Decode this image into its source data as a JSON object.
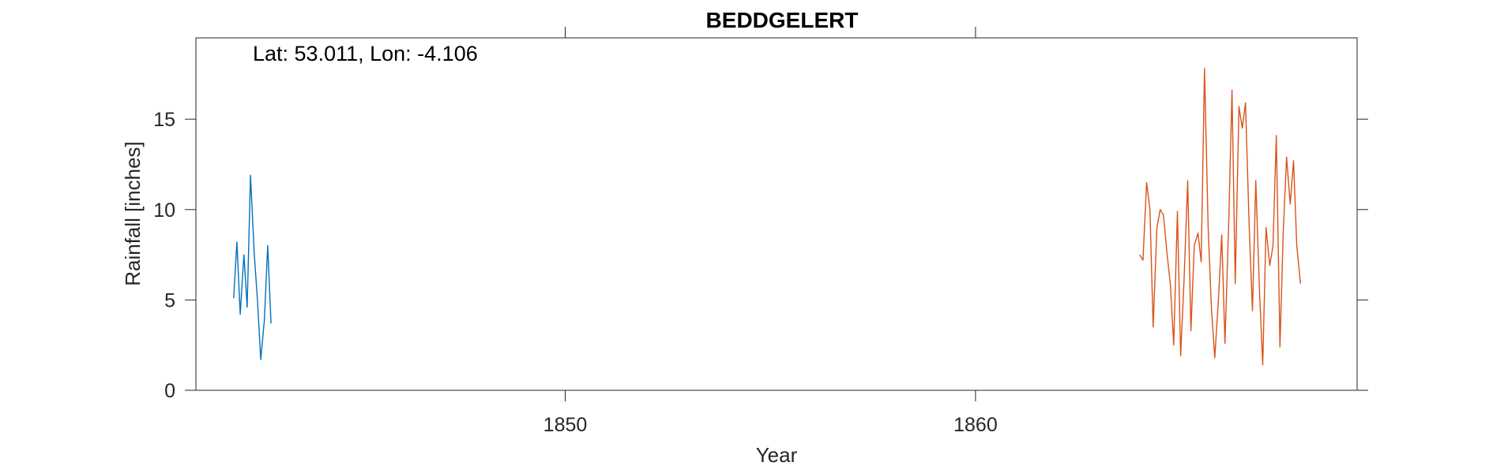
{
  "chart_data": {
    "type": "line",
    "title": "BEDDGELERT",
    "xlabel": "Year",
    "ylabel": "Rainfall [inches]",
    "annotation": "Lat: 53.011, Lon: -4.106",
    "xlim": [
      1841,
      1869.3
    ],
    "ylim": [
      0,
      19.5
    ],
    "xticks": [
      1850,
      1860
    ],
    "xtick_labels": [
      "1850",
      "1860"
    ],
    "yticks": [
      0,
      5,
      10,
      15
    ],
    "ytick_labels": [
      "0",
      "5",
      "10",
      "15"
    ],
    "grid": false,
    "box": true,
    "series": [
      {
        "color": "#0072BD",
        "x": [
          1841.92,
          1842.0,
          1842.08,
          1842.17,
          1842.25,
          1842.33,
          1842.42,
          1842.5,
          1842.58,
          1842.67,
          1842.75,
          1842.83
        ],
        "y": [
          5.1,
          8.2,
          4.2,
          7.5,
          4.6,
          11.9,
          7.6,
          5.0,
          1.7,
          3.9,
          8.0,
          3.7
        ]
      },
      {
        "color": "#D95319",
        "x": [
          1864.0,
          1864.08,
          1864.17,
          1864.25,
          1864.33,
          1864.42,
          1864.5,
          1864.58,
          1864.67,
          1864.75,
          1864.83,
          1864.92,
          1865.0,
          1865.08,
          1865.17,
          1865.25,
          1865.33,
          1865.42,
          1865.5,
          1865.58,
          1865.67,
          1865.75,
          1865.83,
          1865.92,
          1866.0,
          1866.08,
          1866.17,
          1866.25,
          1866.33,
          1866.42,
          1866.5,
          1866.58,
          1866.67,
          1866.75,
          1866.83,
          1866.92,
          1867.0,
          1867.08,
          1867.17,
          1867.25,
          1867.33,
          1867.42,
          1867.5,
          1867.58,
          1867.67,
          1867.75,
          1867.83,
          1867.92
        ],
        "y": [
          7.5,
          7.2,
          11.5,
          10.0,
          3.5,
          9.0,
          10.0,
          9.7,
          7.5,
          5.8,
          2.5,
          9.9,
          1.9,
          6.0,
          11.6,
          3.3,
          8.0,
          8.7,
          7.1,
          17.8,
          9.0,
          4.5,
          1.8,
          5.0,
          8.6,
          2.6,
          9.2,
          16.6,
          5.9,
          15.7,
          14.5,
          15.9,
          9.0,
          4.4,
          11.6,
          5.5,
          1.4,
          9.0,
          6.9,
          8.0,
          14.1,
          2.4,
          8.8,
          12.9,
          10.3,
          12.7,
          8.0,
          5.9
        ]
      }
    ]
  }
}
